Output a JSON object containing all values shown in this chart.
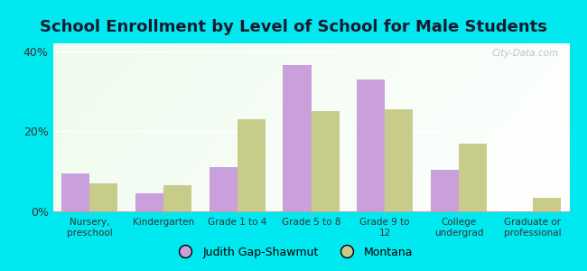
{
  "title": "School Enrollment by Level of School for Male Students",
  "categories": [
    "Nursery,\npreschool",
    "Kindergarten",
    "Grade 1 to 4",
    "Grade 5 to 8",
    "Grade 9 to\n12",
    "College\nundergrad",
    "Graduate or\nprofessional"
  ],
  "judith_values": [
    9.5,
    4.5,
    11.0,
    36.5,
    33.0,
    10.5,
    0.0
  ],
  "montana_values": [
    7.0,
    6.5,
    23.0,
    25.0,
    25.5,
    17.0,
    3.5
  ],
  "judith_color": "#c9a0dc",
  "montana_color": "#c8cc8a",
  "background_color": "#00e8f0",
  "plot_bg_color": "#e8f5e0",
  "ylim": [
    0,
    42
  ],
  "yticks": [
    0,
    20,
    40
  ],
  "ytick_labels": [
    "0%",
    "20%",
    "40%"
  ],
  "title_fontsize": 13,
  "title_color": "#1a1a2e",
  "legend_label_1": "Judith Gap-Shawmut",
  "legend_label_2": "Montana",
  "bar_width": 0.38,
  "watermark_text": "City-Data.com",
  "watermark_color": "#b0c8c8"
}
